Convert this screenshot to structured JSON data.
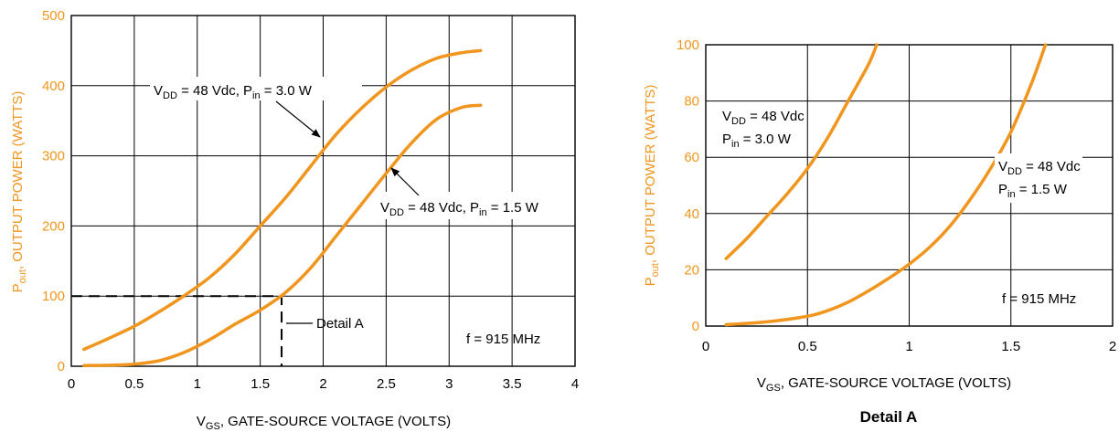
{
  "colors": {
    "curve": "#f0961e",
    "y_axis_text": "#f0961e",
    "axis_text": "#000000"
  },
  "chart_data": [
    {
      "type": "line",
      "xlabel": {
        "pre": "V",
        "sub": "GS",
        "post": ", GATE-SOURCE VOLTAGE (VOLTS)"
      },
      "ylabel": {
        "pre": "P",
        "sub": "out",
        "post": ", OUTPUT POWER (WATTS)"
      },
      "xlim": [
        0,
        4
      ],
      "ylim": [
        0,
        500
      ],
      "xticks": [
        "0",
        "0.5",
        "1",
        "1.5",
        "2",
        "2.5",
        "3",
        "3.5",
        "4"
      ],
      "yticks": [
        "0",
        "100",
        "200",
        "300",
        "400",
        "500"
      ],
      "grid": true,
      "series": [
        {
          "name": "VDD = 48 Vdc, Pin = 3.0 W",
          "x": [
            0.1,
            0.3,
            0.5,
            0.7,
            0.9,
            1.1,
            1.3,
            1.5,
            1.7,
            1.9,
            2.1,
            2.3,
            2.5,
            2.7,
            2.9,
            3.1,
            3.25
          ],
          "y": [
            24,
            40,
            57,
            78,
            101,
            127,
            160,
            200,
            240,
            285,
            330,
            367,
            398,
            422,
            439,
            447,
            450
          ]
        },
        {
          "name": "VDD = 48 Vdc, Pin = 1.5 W",
          "x": [
            0.1,
            0.3,
            0.5,
            0.7,
            0.9,
            1.1,
            1.3,
            1.5,
            1.7,
            1.9,
            2.1,
            2.3,
            2.5,
            2.7,
            2.9,
            3.1,
            3.25
          ],
          "y": [
            1,
            1.5,
            3,
            8,
            20,
            38,
            60,
            80,
            105,
            140,
            185,
            230,
            275,
            318,
            352,
            369,
            372
          ]
        }
      ],
      "annotations": {
        "series1": {
          "pre": "V",
          "sub1": "DD",
          "mid": " = 48 Vdc, P",
          "sub2": "in",
          "post": " = 3.0 W"
        },
        "series2": {
          "pre": "V",
          "sub1": "DD",
          "mid": " = 48 Vdc, P",
          "sub2": "in",
          "post": " = 1.5 W"
        },
        "frequency": "f = 915 MHz",
        "detail": "Detail A"
      },
      "detail_region": {
        "x": 1.67,
        "y": 100
      }
    },
    {
      "type": "line",
      "caption": "Detail A",
      "xlabel": {
        "pre": "V",
        "sub": "GS",
        "post": ", GATE-SOURCE VOLTAGE (VOLTS)"
      },
      "ylabel": {
        "pre": "P",
        "sub": "out",
        "post": ", OUTPUT POWER (WATTS)"
      },
      "xlim": [
        0,
        2
      ],
      "ylim": [
        0,
        100
      ],
      "xticks": [
        "0",
        "0.5",
        "1",
        "1.5",
        "2"
      ],
      "yticks": [
        "0",
        "20",
        "40",
        "60",
        "80",
        "100"
      ],
      "grid": true,
      "series": [
        {
          "name": "VDD = 48 Vdc, Pin = 3.0 W",
          "x": [
            0.1,
            0.2,
            0.3,
            0.4,
            0.5,
            0.6,
            0.7,
            0.8,
            0.84
          ],
          "y": [
            24,
            31,
            39,
            47,
            56,
            67,
            80,
            93,
            100
          ]
        },
        {
          "name": "VDD = 48 Vdc, Pin = 1.5 W",
          "x": [
            0.1,
            0.3,
            0.5,
            0.6,
            0.7,
            0.8,
            0.9,
            1.0,
            1.1,
            1.2,
            1.3,
            1.4,
            1.5,
            1.6,
            1.67
          ],
          "y": [
            0.5,
            1.5,
            3.5,
            5.5,
            8.5,
            12.5,
            17,
            22,
            28,
            35.5,
            45,
            56,
            69,
            86,
            100
          ]
        }
      ],
      "annotations": {
        "series1": {
          "line1_pre": "V",
          "line1_sub": "DD",
          "line1_post": " = 48 Vdc",
          "line2_pre": "P",
          "line2_sub": "in",
          "line2_post": " = 3.0 W"
        },
        "series2": {
          "line1_pre": "V",
          "line1_sub": "DD",
          "line1_post": " = 48 Vdc",
          "line2_pre": "P",
          "line2_sub": "in",
          "line2_post": " = 1.5 W"
        },
        "frequency": "f = 915 MHz"
      }
    }
  ]
}
